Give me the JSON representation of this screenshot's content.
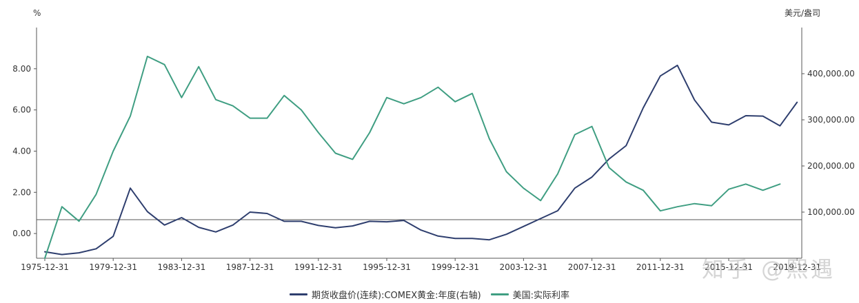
{
  "chart_data": {
    "type": "line",
    "x": [
      "1975-12-31",
      "1976-12-31",
      "1977-12-31",
      "1978-12-31",
      "1979-12-31",
      "1980-12-31",
      "1981-12-31",
      "1982-12-31",
      "1983-12-31",
      "1984-12-31",
      "1985-12-31",
      "1986-12-31",
      "1987-12-31",
      "1988-12-31",
      "1989-12-31",
      "1990-12-31",
      "1991-12-31",
      "1992-12-31",
      "1993-12-31",
      "1994-12-31",
      "1995-12-31",
      "1996-12-31",
      "1997-12-31",
      "1998-12-31",
      "1999-12-31",
      "2000-12-31",
      "2001-12-31",
      "2002-12-31",
      "2003-12-31",
      "2004-12-31",
      "2005-12-31",
      "2006-12-31",
      "2007-12-31",
      "2008-12-31",
      "2009-12-31",
      "2010-12-31",
      "2011-12-31",
      "2012-12-31",
      "2013-12-31",
      "2014-12-31",
      "2015-12-31",
      "2016-12-31",
      "2017-12-31",
      "2018-12-31",
      "2019-12-31",
      "2020-12-31",
      "2021-12-31"
    ],
    "x_tick_labels": [
      "1975-12-31",
      "1979-12-31",
      "1983-12-31",
      "1987-12-31",
      "1991-12-31",
      "1995-12-31",
      "1999-12-31",
      "2003-12-31",
      "2007-12-31",
      "2011-12-31",
      "2015-12-31",
      "2019-12-31"
    ],
    "y_left": {
      "unit": "%",
      "ticks": [
        "0.00",
        "2.00",
        "4.00",
        "6.00",
        "8.00"
      ],
      "range": [
        -1.2,
        10
      ]
    },
    "y_right": {
      "unit": "美元/盎司",
      "ticks": [
        "100,000.00",
        "200,000.00",
        "300,000.00",
        "400,000.00"
      ],
      "range": [
        0,
        500000
      ]
    },
    "series": [
      {
        "name": "期货收盘价(连续):COMEX黄金:年度(右轴)",
        "axis": "right",
        "color": "#2e3e6e",
        "values": [
          13996,
          8040,
          11770,
          20440,
          47470,
          152000,
          101000,
          72000,
          88000,
          67000,
          57000,
          72000,
          100000,
          97000,
          80000,
          80000,
          71000,
          66000,
          70000,
          80000,
          79000,
          82000,
          61000,
          48000,
          43000,
          43000,
          40000,
          52000,
          69000,
          86000,
          103000,
          152000,
          176000,
          215000,
          244000,
          326000,
          395000,
          418000,
          343000,
          295000,
          289000,
          309000,
          308000,
          287000,
          338000,
          null,
          null
        ]
      },
      {
        "name": "美国:实际利率",
        "axis": "left",
        "color": "#3f9e82",
        "values": [
          -1.2,
          1.3,
          0.6,
          1.9,
          4.0,
          5.7,
          8.6,
          8.2,
          6.6,
          8.1,
          6.5,
          6.2,
          5.6,
          5.6,
          6.7,
          6.0,
          4.9,
          3.9,
          3.6,
          4.9,
          6.6,
          6.3,
          6.6,
          7.1,
          6.4,
          6.8,
          4.6,
          3.0,
          2.2,
          1.6,
          2.9,
          4.8,
          5.2,
          3.2,
          2.5,
          2.1,
          1.1,
          1.3,
          1.45,
          1.35,
          2.15,
          2.4,
          2.1,
          2.4,
          null,
          null,
          null
        ]
      }
    ]
  },
  "watermark_text": "知乎 @熙遇"
}
